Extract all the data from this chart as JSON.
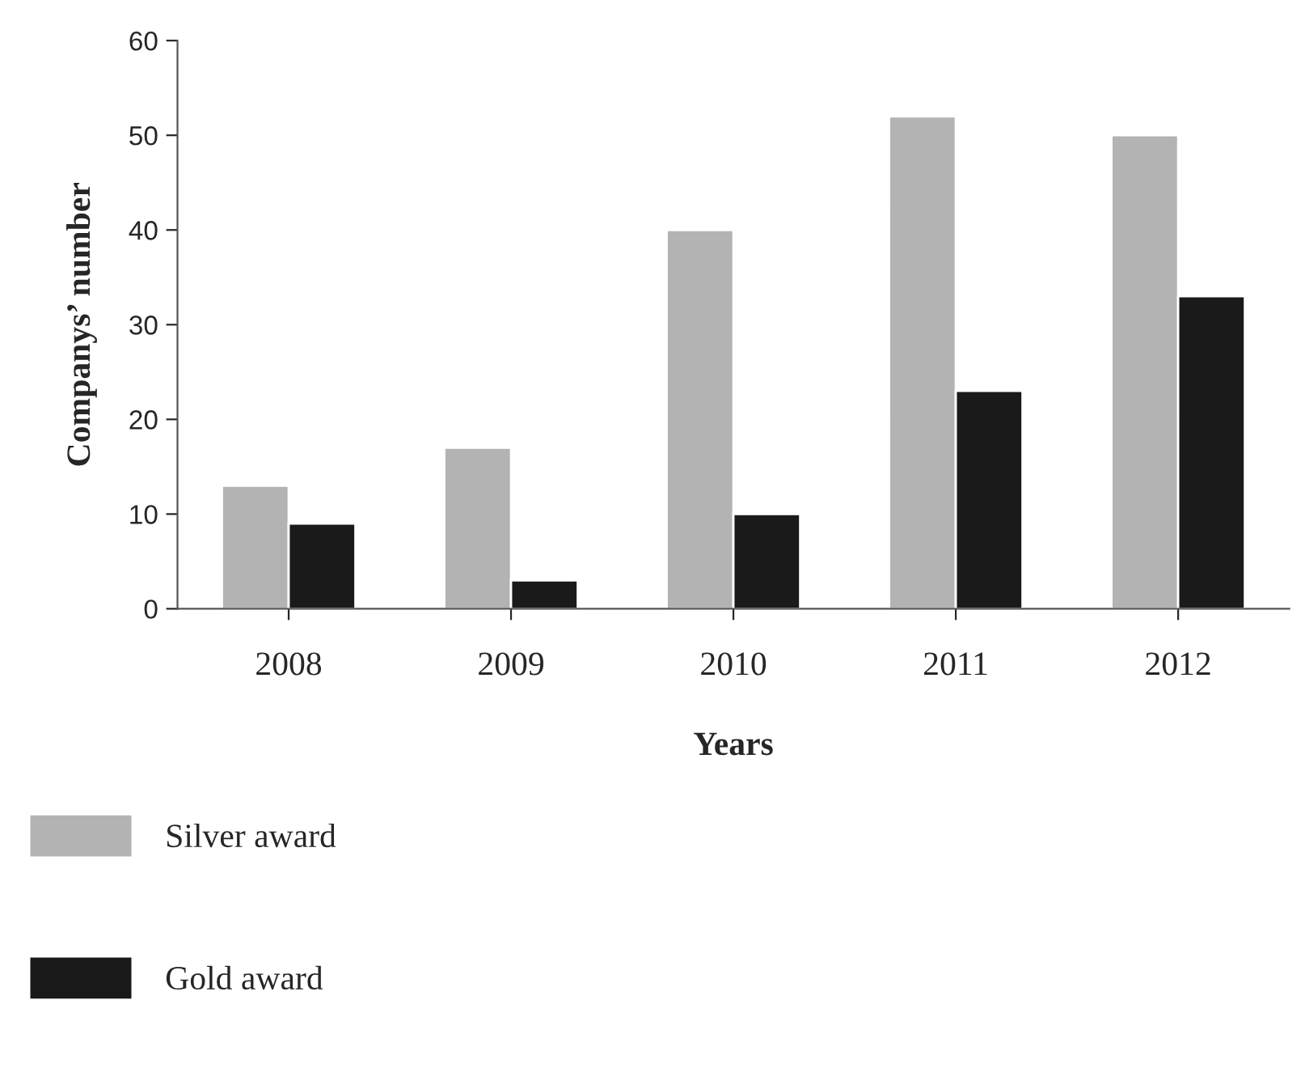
{
  "chart_data": {
    "type": "bar",
    "xlabel": "Years",
    "ylabel": "Companys’ number",
    "categories": [
      "2008",
      "2009",
      "2010",
      "2011",
      "2012"
    ],
    "series": [
      {
        "name": "Silver award",
        "color": "#b3b3b3",
        "values": [
          13,
          17,
          40,
          52,
          50
        ]
      },
      {
        "name": "Gold award",
        "color": "#1a1a1a",
        "values": [
          9,
          3,
          10,
          23,
          33
        ]
      }
    ],
    "ylim": [
      0,
      60
    ],
    "yticks": [
      0,
      10,
      20,
      30,
      40,
      50,
      60
    ],
    "grid": false,
    "legend": "bottom left"
  }
}
